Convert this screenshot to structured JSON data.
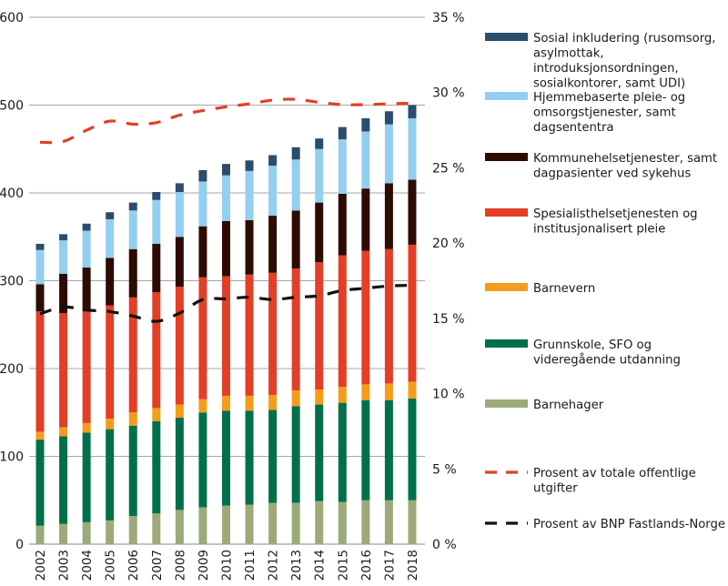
{
  "chart_data": {
    "type": "bar",
    "stacked": true,
    "title": "",
    "xlabel": "",
    "ylabel": "",
    "y2label": "",
    "ylim": [
      0,
      600
    ],
    "yticks": [
      0,
      100,
      200,
      300,
      400,
      500,
      600
    ],
    "y2lim": [
      0,
      35
    ],
    "y2ticks": [
      0,
      5,
      10,
      15,
      20,
      25,
      30,
      35
    ],
    "y2tick_suffix": " %",
    "grid": true,
    "legend_position": "right",
    "categories": [
      "2002",
      "2003",
      "2004",
      "2005",
      "2006",
      "2007",
      "2008",
      "2009",
      "2010",
      "2011",
      "2012",
      "2013",
      "2014",
      "2015",
      "2016",
      "2017",
      "2018"
    ],
    "series": [
      {
        "name": "Barnehager",
        "color": "#9caa78",
        "values": [
          21,
          23,
          25,
          27,
          32,
          35,
          39,
          42,
          44,
          45,
          47,
          47,
          49,
          48,
          50,
          50,
          50
        ]
      },
      {
        "name": "Grunnskole, SFO og videregående utdanning",
        "color": "#00704a",
        "values": [
          98,
          100,
          102,
          104,
          103,
          105,
          105,
          108,
          108,
          107,
          106,
          110,
          110,
          113,
          114,
          114,
          116
        ]
      },
      {
        "name": "Barnevern",
        "color": "#f59c1c",
        "values": [
          9,
          10,
          11,
          12,
          15,
          15,
          15,
          15,
          17,
          17,
          17,
          18,
          17,
          18,
          18,
          19,
          19
        ]
      },
      {
        "name": "Spesialisthelsetjenesten og institusjonalisert pleie",
        "color": "#e23f26",
        "values": [
          137,
          130,
          127,
          129,
          131,
          132,
          134,
          139,
          136,
          138,
          139,
          139,
          145,
          150,
          152,
          153,
          156
        ]
      },
      {
        "name": "Kommunehelsetjenester, samt dagpasienter ved sykehus",
        "color": "#2d0b03",
        "values": [
          31,
          45,
          50,
          54,
          55,
          55,
          57,
          58,
          63,
          62,
          65,
          66,
          68,
          70,
          71,
          75,
          74
        ]
      },
      {
        "name": "Hjemmebaserte pleie- og omsorgstjenester, samt dagsententra",
        "color": "#92cff0",
        "values": [
          39,
          38,
          42,
          44,
          44,
          50,
          51,
          51,
          52,
          56,
          57,
          58,
          61,
          62,
          65,
          67,
          70
        ]
      },
      {
        "name": "Sosial inkludering (rusomsorg, asylmottak, introduksjonsordningen, sosialkontorer, samt UDI)",
        "color": "#2b4d6b",
        "values": [
          7,
          7,
          8,
          8,
          9,
          9,
          10,
          13,
          13,
          12,
          12,
          14,
          12,
          14,
          15,
          15,
          15
        ]
      }
    ],
    "lines": [
      {
        "name": "Prosent av totale offentlige utgifter",
        "color": "#e23f26",
        "axis": "right",
        "style": "dashed",
        "values": [
          26.7,
          26.75,
          27.5,
          28.1,
          27.9,
          28.0,
          28.5,
          28.8,
          29.05,
          29.25,
          29.5,
          29.55,
          29.35,
          29.2,
          29.2,
          29.25,
          29.3
        ]
      },
      {
        "name": "Prosent av BNP Fastlands-Norge",
        "color": "#111111",
        "axis": "right",
        "style": "dashed",
        "values": [
          15.3,
          15.75,
          15.55,
          15.45,
          15.15,
          14.8,
          15.35,
          16.25,
          16.3,
          16.4,
          16.25,
          16.4,
          16.5,
          16.85,
          17.0,
          17.15,
          17.2
        ]
      }
    ],
    "legend": [
      {
        "label_lines": [
          "Sosial inkludering (rusomsorg,",
          "asylmottak,",
          "introduksjonsordningen,",
          "sosialkontorer, samt UDI)"
        ],
        "color": "#2b4d6b",
        "kind": "bar"
      },
      {
        "label_lines": [
          "Hjemmebaserte pleie- og",
          "omsorgstjenester, samt",
          "dagsententra"
        ],
        "color": "#92cff0",
        "kind": "bar"
      },
      {
        "label_lines": [
          "Kommunehelsetjenester, samt",
          "dagpasienter ved sykehus"
        ],
        "color": "#2d0b03",
        "kind": "bar"
      },
      {
        "label_lines": [
          "Spesialisthelsetjenesten og",
          "institusjonalisert pleie"
        ],
        "color": "#e23f26",
        "kind": "bar"
      },
      {
        "label_lines": [
          "Barnevern"
        ],
        "color": "#f59c1c",
        "kind": "bar"
      },
      {
        "label_lines": [
          "Grunnskole, SFO og",
          "videregående utdanning"
        ],
        "color": "#00704a",
        "kind": "bar"
      },
      {
        "label_lines": [
          "Barnehager"
        ],
        "color": "#9caa78",
        "kind": "bar"
      },
      {
        "label_lines": [
          "Prosent av totale offentlige",
          "utgifter"
        ],
        "color": "#e23f26",
        "kind": "dashed"
      },
      {
        "label_lines": [
          "Prosent av BNP Fastlands-Norge"
        ],
        "color": "#111111",
        "kind": "dashed"
      }
    ]
  }
}
